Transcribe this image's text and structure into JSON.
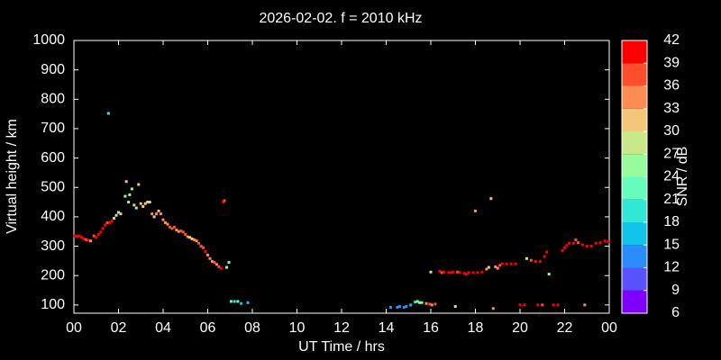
{
  "chart_data": {
    "type": "scatter",
    "title": "2026-02-02. f = 2010 kHz",
    "x_label": "UT Time / hrs",
    "y_label": "Virtual height / km",
    "colorbar_label": "SNR / dB",
    "xlim": [
      0,
      24
    ],
    "xticks": [
      {
        "value": 0,
        "label": "00"
      },
      {
        "value": 2,
        "label": "02"
      },
      {
        "value": 4,
        "label": "04"
      },
      {
        "value": 6,
        "label": "06"
      },
      {
        "value": 8,
        "label": "08"
      },
      10,
      12,
      14,
      16,
      18,
      20,
      22,
      {
        "value": 24,
        "label": "00"
      }
    ],
    "ylim": [
      72,
      1000
    ],
    "yticks": [
      100,
      200,
      300,
      400,
      500,
      600,
      700,
      800,
      900,
      1000
    ],
    "clim": [
      6,
      42
    ],
    "cticks": [
      6,
      9,
      12,
      15,
      18,
      21,
      24,
      27,
      30,
      33,
      36,
      39,
      42
    ],
    "colorscale": [
      "#8000ff",
      "#5a52ff",
      "#2a8cff",
      "#10c4ea",
      "#32e8d4",
      "#66fcbe",
      "#98fc9c",
      "#c8e88a",
      "#f4c67a",
      "#ff8c52",
      "#ff4e2c",
      "#ff0000"
    ],
    "series": [
      {
        "x": [
          0.05,
          0.15,
          0.25,
          0.35,
          0.45,
          0.55,
          0.65,
          0.75,
          0.9,
          1.0,
          1.1,
          1.2,
          1.3,
          1.4,
          1.5,
          1.6,
          1.7,
          1.8,
          1.9,
          2.0,
          2.1,
          1.55,
          2.3,
          2.35,
          2.45,
          2.5,
          2.6,
          2.7,
          2.8,
          2.9,
          3.0,
          3.1,
          3.2,
          3.3,
          3.4,
          3.5,
          3.6,
          3.7,
          3.8,
          3.9,
          4.0,
          4.1,
          4.2,
          4.3,
          4.4,
          4.5,
          4.6,
          4.7,
          4.8,
          4.9,
          5.0,
          5.1,
          5.2,
          5.3,
          5.4,
          5.5,
          5.6,
          5.7,
          5.8,
          5.9,
          6.0,
          6.1,
          6.2,
          6.3,
          6.4,
          6.5,
          6.6,
          6.7,
          6.75,
          6.85,
          6.95,
          7.05,
          7.2,
          7.35,
          7.5,
          7.8,
          14.2,
          14.5,
          14.6,
          14.8,
          14.9,
          15.1,
          15.3,
          15.4,
          15.5,
          15.6,
          15.8,
          15.95,
          16.05,
          16.2,
          16.0,
          16.4,
          16.5,
          16.6,
          16.8,
          16.9,
          17.0,
          17.1,
          17.2,
          17.3,
          17.5,
          17.6,
          17.7,
          17.9,
          18.0,
          18.1,
          18.3,
          18.5,
          18.6,
          18.7,
          18.8,
          18.9,
          19.0,
          19.1,
          19.2,
          19.4,
          19.6,
          19.8,
          20.0,
          20.2,
          20.3,
          20.5,
          20.7,
          20.8,
          20.9,
          21.0,
          21.1,
          21.2,
          21.3,
          21.5,
          21.7,
          21.9,
          22.0,
          22.1,
          22.2,
          22.4,
          22.5,
          22.6,
          22.8,
          22.9,
          23.0,
          23.2,
          23.4,
          23.6,
          23.8,
          23.95
        ],
        "values": [
          335,
          333,
          335,
          330,
          325,
          322,
          320,
          318,
          335,
          330,
          340,
          348,
          360,
          372,
          380,
          380,
          385,
          395,
          405,
          415,
          410,
          752,
          470,
          520,
          450,
          475,
          495,
          440,
          430,
          510,
          445,
          435,
          445,
          450,
          450,
          410,
          400,
          410,
          420,
          410,
          390,
          380,
          375,
          365,
          360,
          365,
          355,
          350,
          352,
          348,
          340,
          332,
          330,
          325,
          322,
          318,
          310,
          300,
          295,
          282,
          270,
          258,
          248,
          245,
          238,
          230,
          225,
          450,
          455,
          228,
          245,
          112,
          112,
          112,
          105,
          108,
          92,
          92,
          95,
          92,
          95,
          100,
          110,
          112,
          108,
          108,
          105,
          103,
          100,
          103,
          212,
          215,
          210,
          212,
          210,
          210,
          212,
          95,
          212,
          210,
          208,
          205,
          210,
          210,
          420,
          210,
          212,
          222,
          228,
          462,
          88,
          230,
          225,
          235,
          240,
          240,
          240,
          240,
          100,
          100,
          258,
          252,
          248,
          100,
          248,
          100,
          265,
          280,
          205,
          100,
          100,
          285,
          295,
          302,
          310,
          310,
          322,
          312,
          305,
          100,
          300,
          300,
          310,
          312,
          318,
          315
        ],
        "snr": [
          40,
          40,
          41,
          40,
          39,
          38,
          40,
          34,
          38,
          40,
          39,
          40,
          40,
          40,
          38,
          40,
          39,
          31,
          26,
          26,
          30,
          20,
          25,
          32,
          26,
          26,
          24,
          30,
          29,
          32,
          30,
          32,
          30,
          31,
          27,
          33,
          30,
          33,
          31,
          33,
          35,
          34,
          33,
          37,
          36,
          36,
          34,
          35,
          38,
          36,
          38,
          34,
          32,
          31,
          34,
          33,
          37,
          38,
          36,
          39,
          35,
          33,
          34,
          36,
          35,
          37,
          39,
          40,
          36,
          27,
          22,
          22,
          20,
          21,
          17,
          16,
          13,
          13,
          14,
          12,
          14,
          16,
          20,
          22,
          25,
          22,
          35,
          37,
          33,
          37,
          27,
          39,
          37,
          40,
          41,
          39,
          40,
          27,
          38,
          40,
          40,
          41,
          39,
          40,
          33,
          40,
          39,
          34,
          31,
          32,
          33,
          35,
          34,
          37,
          40,
          40,
          41,
          40,
          40,
          40,
          28,
          38,
          40,
          39,
          40,
          38,
          40,
          39,
          25,
          40,
          40,
          40,
          41,
          40,
          40,
          39,
          38,
          38,
          40,
          35,
          39,
          40,
          40,
          40,
          39,
          40
        ]
      }
    ]
  }
}
